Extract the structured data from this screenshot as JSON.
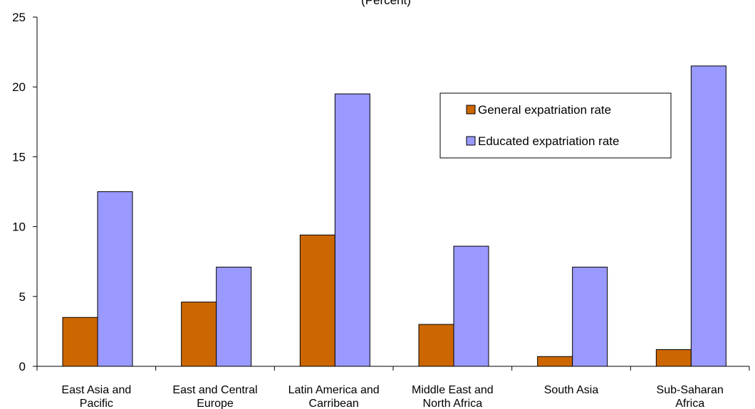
{
  "chart_data": {
    "type": "bar",
    "title": "",
    "subtitle": "(Percent)",
    "xlabel": "",
    "ylabel": "",
    "ylim": [
      0,
      25
    ],
    "yticks": [
      0,
      5,
      10,
      15,
      20,
      25
    ],
    "grid": false,
    "legend_position": "top-right",
    "categories": [
      [
        "East Asia and",
        "Pacific"
      ],
      [
        "East and Central",
        "Europe"
      ],
      [
        "Latin America and",
        "Carribean"
      ],
      [
        "Middle East and",
        "North Africa"
      ],
      [
        "South Asia"
      ],
      [
        "Sub-Saharan",
        "Africa"
      ]
    ],
    "series": [
      {
        "name": "General expatriation rate",
        "color": "#cc6600",
        "values": [
          3.5,
          4.6,
          9.4,
          3.0,
          0.7,
          1.2
        ]
      },
      {
        "name": "Educated expatriation rate",
        "color": "#9999ff",
        "values": [
          12.5,
          7.1,
          19.5,
          8.6,
          7.1,
          21.5
        ]
      }
    ]
  }
}
